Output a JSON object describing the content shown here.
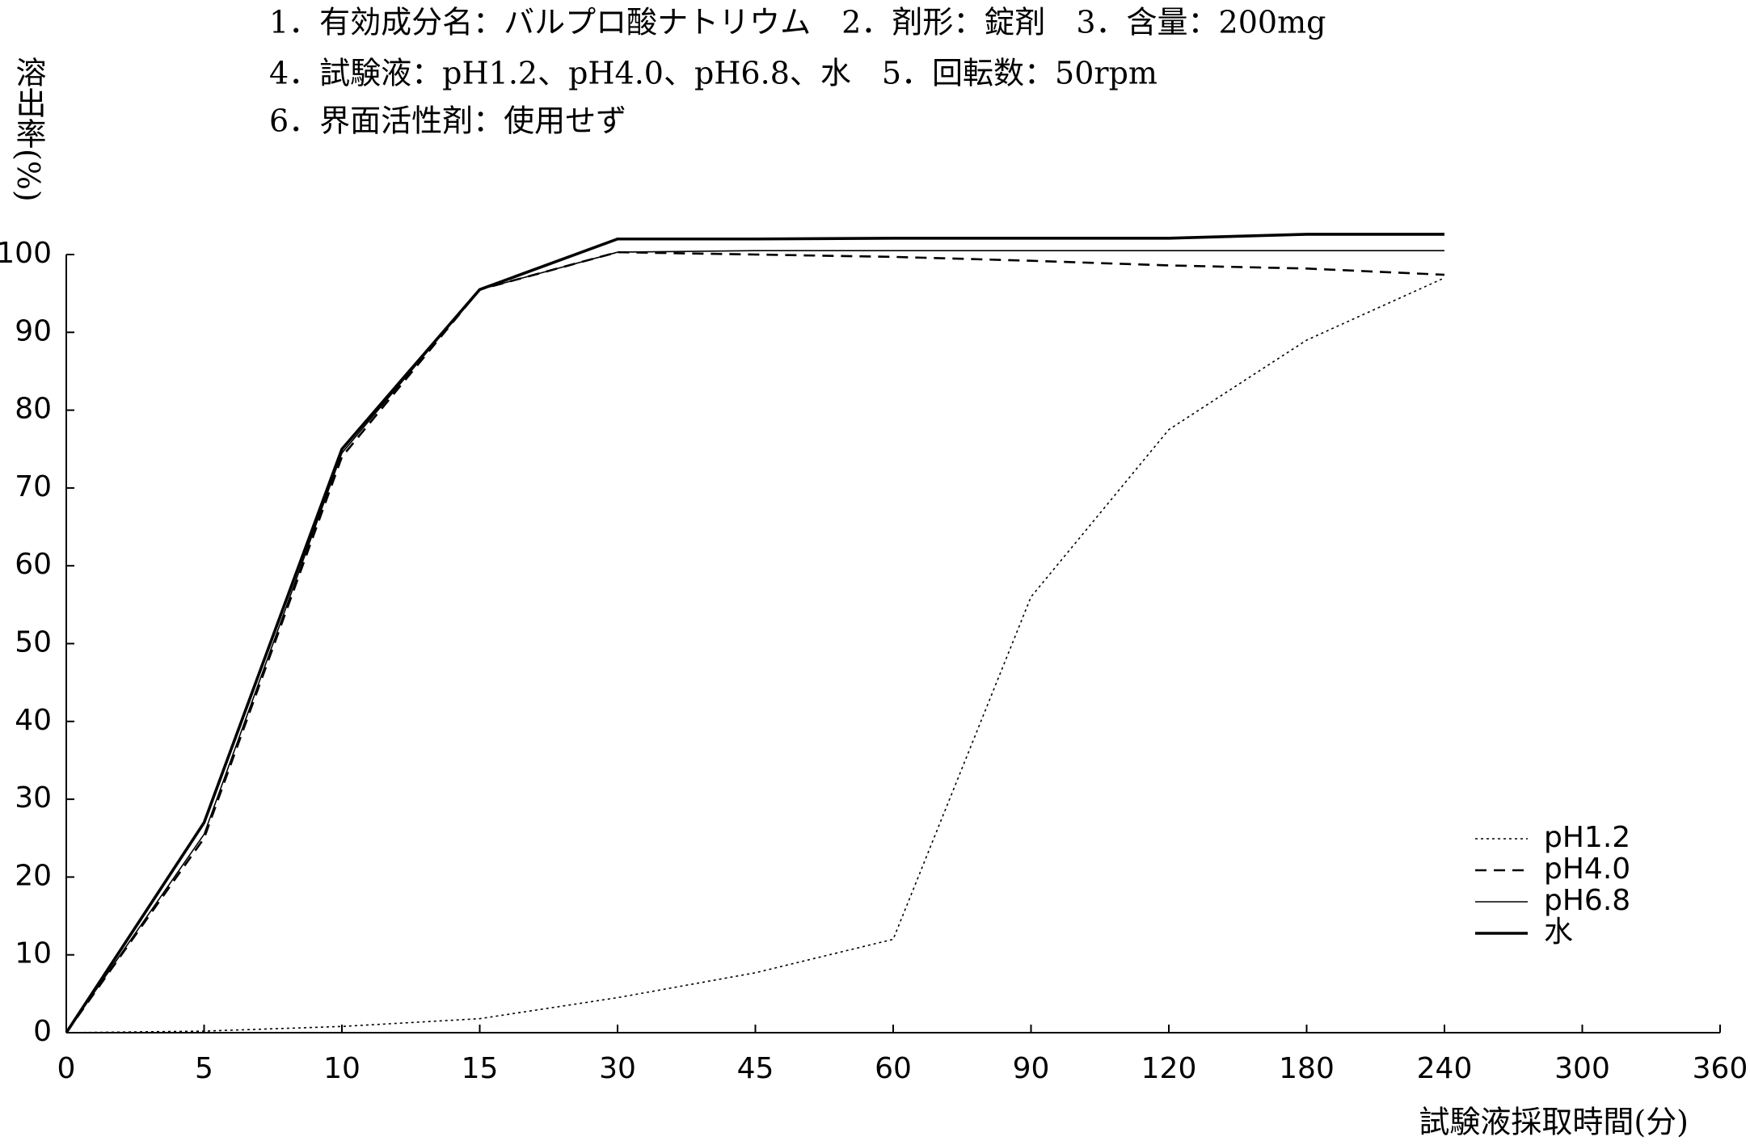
{
  "chart_data": {
    "type": "line",
    "title_lines": [
      "1．有効成分名：バルプロ酸ナトリウム　2．剤形：錠剤　3．含量：200mg",
      "4．試験液：pH1.2、pH4.0、pH6.8、水　5．回転数：50rpm",
      "6．界面活性剤：使用せず"
    ],
    "y_label": "溶出率(%)",
    "x_label": "試験液採取時間(分)",
    "categories": [
      "0",
      "5",
      "10",
      "15",
      "30",
      "45",
      "60",
      "90",
      "120",
      "180",
      "240",
      "300",
      "360"
    ],
    "ylim": [
      0,
      100
    ],
    "yticks": [
      0,
      10,
      20,
      30,
      40,
      50,
      60,
      70,
      80,
      90,
      100
    ],
    "legend": "lower right",
    "series": [
      {
        "name": "pH1.2",
        "color": "#000000",
        "dash": "dotted",
        "values": [
          0,
          0.2,
          0.8,
          1.8,
          4.5,
          7.7,
          12,
          56,
          77.5,
          89,
          97,
          null,
          null
        ]
      },
      {
        "name": "pH4.0",
        "color": "#000000",
        "dash": "dashed",
        "values": [
          0,
          25,
          74,
          95.5,
          100.3,
          100,
          99.7,
          99.2,
          98.6,
          98.2,
          97.4,
          null,
          null
        ]
      },
      {
        "name": "pH6.8",
        "color": "#000000",
        "dash": "thin",
        "values": [
          0,
          25.5,
          74.5,
          95.5,
          100.3,
          100.5,
          100.5,
          100.5,
          100.5,
          100.5,
          100.5,
          null,
          null
        ]
      },
      {
        "name": "水",
        "color": "#000000",
        "dash": "thick",
        "values": [
          0,
          27,
          75,
          95.5,
          102,
          102,
          102.1,
          102.1,
          102.1,
          102.6,
          102.6,
          null,
          null
        ]
      }
    ]
  }
}
